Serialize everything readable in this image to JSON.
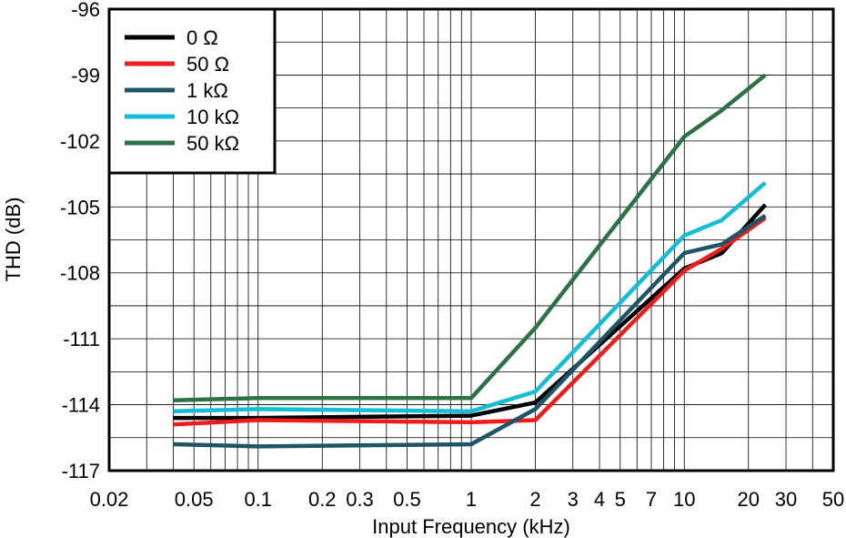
{
  "chart_data": {
    "type": "line",
    "title": "",
    "xlabel": "Input Frequency (kHz)",
    "ylabel": "THD (dB)",
    "xscale": "log",
    "xlim": [
      0.02,
      50
    ],
    "ylim": [
      -117,
      -96
    ],
    "grid": true,
    "legend_position": "top-left",
    "x_ticks": [
      {
        "value": 0.02,
        "label": "0.02"
      },
      {
        "value": 0.05,
        "label": "0.05"
      },
      {
        "value": 0.1,
        "label": "0.1"
      },
      {
        "value": 0.2,
        "label": "0.2"
      },
      {
        "value": 0.3,
        "label": "0.3"
      },
      {
        "value": 0.5,
        "label": "0.5"
      },
      {
        "value": 1,
        "label": "1"
      },
      {
        "value": 2,
        "label": "2"
      },
      {
        "value": 3,
        "label": "3"
      },
      {
        "value": 4,
        "label": "4"
      },
      {
        "value": 5,
        "label": "5"
      },
      {
        "value": 7,
        "label": "7"
      },
      {
        "value": 10,
        "label": "10"
      },
      {
        "value": 20,
        "label": "20"
      },
      {
        "value": 30,
        "label": "30"
      },
      {
        "value": 50,
        "label": "50"
      }
    ],
    "x_minor_grid": [
      0.03,
      0.04,
      0.06,
      0.07,
      0.08,
      0.09,
      0.4,
      0.6,
      0.7,
      0.8,
      0.9,
      6,
      8,
      9,
      40
    ],
    "y_ticks": [
      {
        "value": -96,
        "label": "-96"
      },
      {
        "value": -99,
        "label": "-99"
      },
      {
        "value": -102,
        "label": "-102"
      },
      {
        "value": -105,
        "label": "-105"
      },
      {
        "value": -108,
        "label": "-108"
      },
      {
        "value": -111,
        "label": "-111"
      },
      {
        "value": -114,
        "label": "-114"
      },
      {
        "value": -117,
        "label": "-117"
      }
    ],
    "y_minor_grid": [
      -97.5,
      -100.5,
      -103.5,
      -106.5,
      -109.5,
      -112.5,
      -115.5
    ],
    "series": [
      {
        "name": "0 Ω",
        "color": "#000000",
        "x": [
          0.04,
          0.1,
          1,
          2,
          10,
          15,
          24
        ],
        "y": [
          -114.6,
          -114.6,
          -114.5,
          -113.9,
          -107.8,
          -107.1,
          -104.9
        ]
      },
      {
        "name": "50 Ω",
        "color": "#ee1c1c",
        "x": [
          0.04,
          0.1,
          1,
          2,
          10,
          15,
          24
        ],
        "y": [
          -114.9,
          -114.7,
          -114.8,
          -114.7,
          -107.9,
          -106.9,
          -105.5
        ]
      },
      {
        "name": "1 kΩ",
        "color": "#1d5466",
        "x": [
          0.04,
          0.1,
          1,
          2,
          10,
          15,
          24
        ],
        "y": [
          -115.8,
          -115.9,
          -115.8,
          -114.2,
          -107.1,
          -106.7,
          -105.4
        ]
      },
      {
        "name": "10 kΩ",
        "color": "#12bed6",
        "x": [
          0.04,
          0.1,
          1,
          2,
          10,
          15,
          24
        ],
        "y": [
          -114.3,
          -114.2,
          -114.3,
          -113.4,
          -106.3,
          -105.6,
          -103.9
        ]
      },
      {
        "name": "50 kΩ",
        "color": "#2e7147",
        "x": [
          0.04,
          0.1,
          1,
          2,
          10,
          15,
          24
        ],
        "y": [
          -113.8,
          -113.7,
          -113.7,
          -110.5,
          -101.8,
          -100.6,
          -99.0
        ]
      }
    ]
  }
}
